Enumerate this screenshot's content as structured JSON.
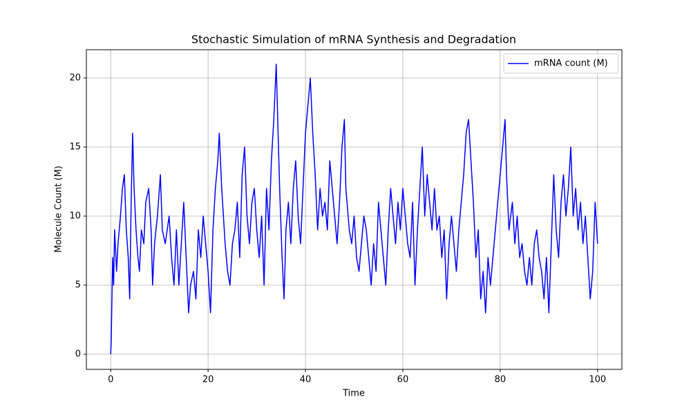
{
  "chart_data": {
    "type": "line",
    "title": "Stochastic Simulation of mRNA Synthesis and Degradation",
    "xlabel": "Time",
    "ylabel": "Molecule Count (M)",
    "x": [
      0,
      0.1,
      0.2,
      0.4,
      0.6,
      0.8,
      1.2,
      1.5,
      2,
      2.4,
      2.8,
      3.2,
      3.6,
      3.9,
      4.2,
      4.5,
      4.8,
      5.2,
      5.6,
      5.9,
      6.3,
      6.8,
      7.2,
      7.8,
      8.3,
      8.6,
      9,
      9.6,
      10.2,
      10.6,
      11.2,
      12,
      12.5,
      13,
      13.5,
      14,
      14.5,
      15,
      15.5,
      16,
      16.4,
      17,
      17.5,
      18,
      18.5,
      19,
      19.5,
      20,
      20.5,
      21,
      21.5,
      22,
      22.3,
      22.8,
      23.5,
      24,
      24.5,
      25,
      25.5,
      26,
      26.5,
      27,
      27.5,
      28,
      28.5,
      29,
      29.5,
      30,
      30.5,
      31,
      31.5,
      32,
      32.5,
      33,
      33.5,
      34,
      34.3,
      34.7,
      35.2,
      35.6,
      36,
      36.5,
      37,
      37.5,
      38,
      38.5,
      39,
      39.5,
      40,
      40.5,
      41,
      41.5,
      42,
      42.5,
      43,
      43.5,
      44,
      44.5,
      45,
      45.5,
      46,
      46.5,
      47,
      47.5,
      48,
      48.3,
      49,
      49.5,
      50,
      50.5,
      51,
      51.5,
      52,
      52.5,
      53,
      53.5,
      54,
      54.5,
      55,
      55.5,
      56,
      56.5,
      57,
      57.5,
      58,
      58.5,
      59,
      59.5,
      60,
      60.5,
      61,
      61.5,
      62,
      62.5,
      63,
      63.5,
      64,
      64.5,
      65,
      65.5,
      66,
      66.5,
      67,
      67.5,
      68,
      68.5,
      69,
      69.5,
      70,
      70.5,
      71,
      71.5,
      72,
      72.5,
      73,
      73.5,
      74,
      74.5,
      75,
      75.5,
      76,
      76.5,
      77,
      77.5,
      78,
      78.5,
      79,
      79.5,
      80,
      80.5,
      81,
      81.3,
      81.8,
      82.5,
      83,
      83.5,
      84,
      84.5,
      85,
      85.5,
      86,
      86.5,
      87,
      87.5,
      88,
      88.5,
      89,
      89.5,
      90,
      90.5,
      91,
      91.5,
      92,
      92.5,
      93,
      93.5,
      94,
      94.5,
      95,
      95.5,
      96,
      96.5,
      97,
      97.5,
      98,
      98.5,
      99,
      99.5,
      100
    ],
    "series": [
      {
        "name": "mRNA count (M)",
        "color": "#0000ff",
        "values": [
          0,
          1,
          3,
          7,
          5,
          9,
          6,
          8,
          10,
          12,
          13,
          9,
          7,
          4,
          11,
          16,
          12,
          9,
          7,
          6,
          9,
          8,
          11,
          12,
          9,
          5,
          8,
          10,
          13,
          9,
          8,
          10,
          7,
          5,
          9,
          5,
          8,
          11,
          7,
          3,
          5,
          6,
          4,
          9,
          7,
          10,
          8,
          6,
          3,
          9,
          12,
          14,
          16,
          12,
          8,
          6,
          5,
          8,
          9,
          11,
          7,
          13,
          15,
          10,
          8,
          11,
          12,
          9,
          7,
          10,
          5,
          12,
          9,
          14,
          17,
          21,
          17,
          12,
          7,
          4,
          9,
          11,
          8,
          12,
          14,
          10,
          8,
          12,
          16,
          18,
          20,
          16,
          13,
          9,
          12,
          10,
          11,
          9,
          14,
          12,
          10,
          8,
          11,
          15,
          17,
          12,
          9,
          8,
          10,
          7,
          6,
          8,
          10,
          9,
          7,
          5,
          8,
          6,
          11,
          9,
          7,
          5,
          9,
          12,
          10,
          8,
          11,
          9,
          12,
          10,
          8,
          7,
          11,
          5,
          9,
          12,
          15,
          10,
          13,
          11,
          9,
          12,
          9,
          10,
          7,
          9,
          4,
          8,
          10,
          8,
          6,
          9,
          11,
          13,
          16,
          17,
          14,
          11,
          7,
          9,
          4,
          6,
          3,
          7,
          5,
          7,
          9,
          11,
          13,
          15,
          17,
          13,
          9,
          11,
          8,
          10,
          7,
          8,
          6,
          5,
          7,
          5,
          8,
          9,
          7,
          6,
          4,
          7,
          3,
          8,
          13,
          9,
          7,
          11,
          13,
          10,
          12,
          15,
          10,
          12,
          9,
          11,
          8,
          10,
          7,
          4,
          6,
          11,
          8
        ]
      }
    ],
    "xlim": [
      -5,
      105
    ],
    "ylim": [
      -1.1,
      22.05
    ],
    "xticks": [
      0,
      20,
      40,
      60,
      80,
      100
    ],
    "yticks": [
      0,
      5,
      10,
      15,
      20
    ],
    "grid": true,
    "legend": "upper right"
  }
}
